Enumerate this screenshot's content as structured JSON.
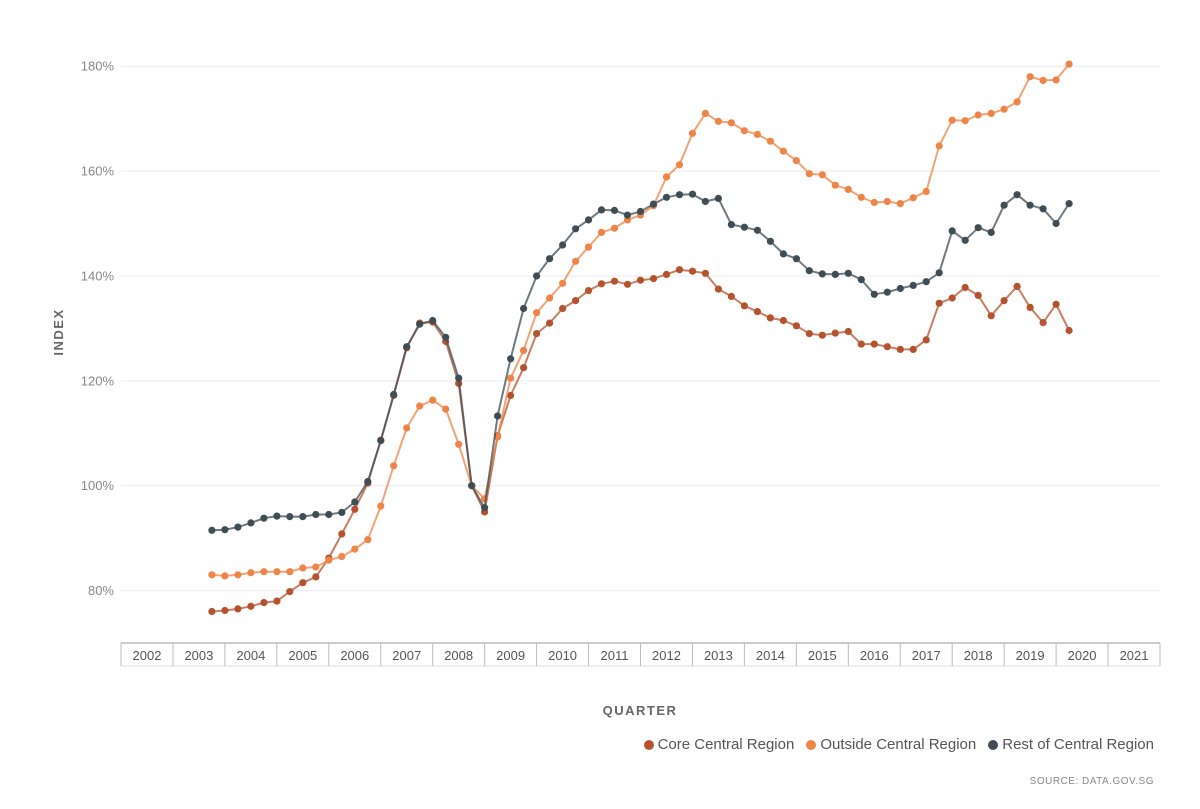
{
  "chart_data": {
    "type": "line",
    "xlabel": "QUARTER",
    "ylabel": "INDEX",
    "x_start": 2003.75,
    "x_step": 0.25,
    "xlim": [
      2002,
      2022
    ],
    "ylim": [
      70,
      185
    ],
    "yticks": [
      80,
      100,
      120,
      140,
      160,
      180
    ],
    "ytick_labels": [
      "80%",
      "100%",
      "120%",
      "140%",
      "160%",
      "180%"
    ],
    "year_labels": [
      "2002",
      "2003",
      "2004",
      "2005",
      "2006",
      "2007",
      "2008",
      "2009",
      "2010",
      "2011",
      "2012",
      "2013",
      "2014",
      "2015",
      "2016",
      "2017",
      "2018",
      "2019",
      "2020",
      "2021"
    ],
    "grid": true,
    "legend_position": "bottom-right",
    "series": [
      {
        "name": "Core Central Region",
        "color": "#b5532f",
        "values": [
          76.0,
          76.2,
          76.5,
          77.0,
          77.7,
          78.0,
          79.8,
          81.5,
          82.6,
          86.2,
          90.8,
          95.5,
          100.5,
          108.7,
          117.2,
          126.3,
          131.0,
          131.2,
          127.5,
          119.5,
          100.0,
          95.0,
          109.5,
          117.2,
          122.5,
          129.0,
          131.0,
          133.8,
          135.3,
          137.2,
          138.5,
          139.0,
          138.4,
          139.2,
          139.5,
          140.3,
          141.2,
          140.9,
          140.5,
          137.5,
          136.1,
          134.3,
          133.2,
          132.0,
          131.5,
          130.5,
          129.0,
          128.7,
          129.1,
          129.4,
          127.0,
          127.0,
          126.5,
          126.0,
          126.0,
          127.8,
          134.8,
          135.8,
          137.8,
          136.3,
          132.4,
          135.3,
          138.0,
          134.0,
          131.1,
          134.6,
          129.6
        ]
      },
      {
        "name": "Outside Central Region",
        "color": "#ee8447",
        "values": [
          83.0,
          82.8,
          83.0,
          83.4,
          83.6,
          83.6,
          83.6,
          84.3,
          84.5,
          85.8,
          86.5,
          87.9,
          89.7,
          96.1,
          103.8,
          111.0,
          115.2,
          116.3,
          114.6,
          107.9,
          100.0,
          97.5,
          109.3,
          120.5,
          125.8,
          133.0,
          135.8,
          138.6,
          142.8,
          145.5,
          148.3,
          149.1,
          150.7,
          151.6,
          153.4,
          158.9,
          161.2,
          167.2,
          171.0,
          169.5,
          169.2,
          167.7,
          167.0,
          165.7,
          163.8,
          162.0,
          159.5,
          159.3,
          157.3,
          156.5,
          155.0,
          154.0,
          154.2,
          153.8,
          154.9,
          156.1,
          164.8,
          169.7,
          169.6,
          170.7,
          171.0,
          171.8,
          173.2,
          178.0,
          177.3,
          177.4,
          180.4
        ]
      },
      {
        "name": "Rest of Central Region",
        "color": "#3f4d55",
        "values": [
          91.5,
          91.6,
          92.1,
          92.9,
          93.8,
          94.2,
          94.1,
          94.1,
          94.5,
          94.5,
          94.9,
          96.9,
          100.8,
          108.6,
          117.4,
          126.5,
          130.8,
          131.5,
          128.3,
          120.5,
          100.0,
          95.8,
          113.3,
          124.2,
          133.8,
          140.0,
          143.3,
          145.9,
          149.0,
          150.7,
          152.6,
          152.5,
          151.6,
          152.3,
          153.7,
          155.0,
          155.5,
          155.6,
          154.2,
          154.8,
          149.8,
          149.3,
          148.7,
          146.6,
          144.2,
          143.3,
          141.0,
          140.4,
          140.3,
          140.5,
          139.3,
          136.5,
          136.9,
          137.6,
          138.2,
          138.9,
          140.6,
          148.6,
          146.8,
          149.2,
          148.3,
          153.5,
          155.5,
          153.5,
          152.8,
          150.0,
          153.8
        ]
      }
    ]
  },
  "source": "SOURCE: DATA.GOV.SG"
}
